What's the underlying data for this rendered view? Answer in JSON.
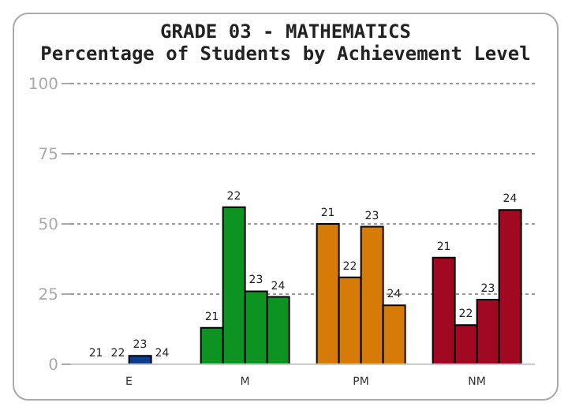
{
  "chart_data": {
    "type": "bar",
    "title": "GRADE 03 - MATHEMATICS",
    "subtitle": "Percentage of Students by Achievement Level",
    "categories": [
      "E",
      "M",
      "PM",
      "NM"
    ],
    "series": [
      {
        "name": "21",
        "colors": [
          "#0d3d8c",
          "#0c9322",
          "#d67b08",
          "#a10821"
        ],
        "values": [
          0,
          13,
          50,
          38
        ]
      },
      {
        "name": "22",
        "colors": [
          "#0d3d8c",
          "#0c9322",
          "#d67b08",
          "#a10821"
        ],
        "values": [
          0,
          56,
          31,
          14
        ]
      },
      {
        "name": "23",
        "colors": [
          "#0d3d8c",
          "#0c9322",
          "#d67b08",
          "#a10821"
        ],
        "values": [
          3,
          26,
          49,
          23
        ]
      },
      {
        "name": "24",
        "colors": [
          "#0d3d8c",
          "#0c9322",
          "#d67b08",
          "#a10821"
        ],
        "values": [
          0,
          24,
          21,
          55
        ]
      }
    ],
    "ylim": [
      0,
      100
    ],
    "yticks": [
      0,
      25,
      50,
      75,
      100
    ],
    "grid": "y"
  }
}
